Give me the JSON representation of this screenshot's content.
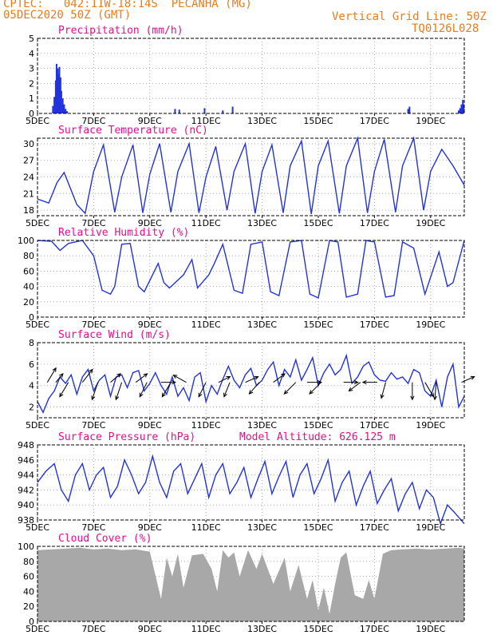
{
  "header": {
    "line1_left": "CPTEC:   042:11W-18:14S  PECANHA (MG)",
    "line2_left": "05DEC2020 50Z (GMT)",
    "line1_right": "Vertical Grid Line: 50Z",
    "line2_right": "TQ0126L028"
  },
  "x_tick_labels": [
    "5DEC",
    "7DEC",
    "9DEC",
    "11DEC",
    "13DEC",
    "15DEC",
    "17DEC",
    "19DEC"
  ],
  "x_tick_values": [
    0,
    2,
    4,
    6,
    8,
    10,
    12,
    14
  ],
  "x_range": [
    0,
    15.2
  ],
  "colors": {
    "line": "#2233dd",
    "bar": "#2233dd",
    "cloud": "#a8a8a8",
    "title": "#e0108a",
    "header": "#e87c1e"
  },
  "chart_data": [
    {
      "type": "bar",
      "title": "Precipitation (mm/h)",
      "ylim": [
        0,
        5
      ],
      "yticks": [
        0,
        1,
        2,
        3,
        4,
        5
      ],
      "bars": [
        {
          "x": 0.55,
          "y": 0.5
        },
        {
          "x": 0.6,
          "y": 1.1
        },
        {
          "x": 0.65,
          "y": 2.2
        },
        {
          "x": 0.68,
          "y": 3.3
        },
        {
          "x": 0.72,
          "y": 3.0
        },
        {
          "x": 0.75,
          "y": 2.6
        },
        {
          "x": 0.78,
          "y": 3.1
        },
        {
          "x": 0.82,
          "y": 2.4
        },
        {
          "x": 0.85,
          "y": 1.5
        },
        {
          "x": 0.9,
          "y": 1.0
        },
        {
          "x": 0.95,
          "y": 0.6
        },
        {
          "x": 1.0,
          "y": 0.3
        },
        {
          "x": 1.05,
          "y": 0.15
        },
        {
          "x": 4.9,
          "y": 0.3
        },
        {
          "x": 5.05,
          "y": 0.25
        },
        {
          "x": 5.95,
          "y": 0.35
        },
        {
          "x": 6.6,
          "y": 0.2
        },
        {
          "x": 6.95,
          "y": 0.45
        },
        {
          "x": 13.2,
          "y": 0.3
        },
        {
          "x": 13.25,
          "y": 0.45
        },
        {
          "x": 15.0,
          "y": 0.2
        },
        {
          "x": 15.05,
          "y": 0.35
        },
        {
          "x": 15.1,
          "y": 0.6
        },
        {
          "x": 15.15,
          "y": 0.9
        },
        {
          "x": 15.18,
          "y": 0.6
        }
      ]
    },
    {
      "type": "line",
      "title": "Surface Temperature (nC)",
      "ylim": [
        17,
        31
      ],
      "yticks": [
        18,
        21,
        24,
        27,
        30
      ],
      "series": [
        {
          "x": [
            0,
            0.4,
            0.7,
            0.95,
            1.4,
            1.7,
            2.0,
            2.35,
            2.75,
            3.0,
            3.4,
            3.75,
            4.0,
            4.35,
            4.75,
            5.0,
            5.4,
            5.75,
            6.0,
            6.35,
            6.75,
            7.0,
            7.4,
            7.75,
            8.0,
            8.35,
            8.75,
            9.0,
            9.4,
            9.75,
            10.0,
            10.35,
            10.75,
            11.0,
            11.4,
            11.75,
            12.0,
            12.35,
            12.75,
            13.0,
            13.4,
            13.75,
            14.0,
            14.4,
            14.8,
            15.2
          ],
          "y": [
            20,
            19.3,
            23,
            24.8,
            19,
            17.4,
            25,
            29.8,
            17.6,
            24,
            29.8,
            17.5,
            24.5,
            30,
            17.6,
            25,
            30,
            17.5,
            24,
            29.5,
            18,
            25,
            30,
            17.4,
            25,
            29.8,
            17.5,
            26,
            30.5,
            17.3,
            26,
            30.5,
            17.4,
            26,
            31,
            17.5,
            25,
            30.8,
            17.6,
            26,
            31,
            18,
            25,
            29,
            26,
            22.5
          ]
        }
      ]
    },
    {
      "type": "line",
      "title": "Relative Humidity (%)",
      "ylim": [
        0,
        100
      ],
      "yticks": [
        0,
        20,
        40,
        60,
        80,
        100
      ],
      "series": [
        {
          "x": [
            0,
            0.5,
            0.8,
            1.1,
            1.6,
            2.0,
            2.3,
            2.6,
            2.75,
            3.0,
            3.3,
            3.6,
            3.8,
            4.3,
            4.5,
            4.7,
            5.2,
            5.5,
            5.7,
            6.1,
            6.3,
            6.6,
            7.0,
            7.3,
            7.6,
            8.0,
            8.3,
            8.6,
            9.0,
            9.4,
            9.7,
            10.0,
            10.4,
            10.7,
            11.0,
            11.4,
            11.7,
            12.0,
            12.4,
            12.7,
            13.0,
            13.4,
            13.8,
            14.3,
            14.6,
            14.8,
            15.2
          ],
          "y": [
            100,
            99,
            87,
            96,
            100,
            80,
            35,
            30,
            40,
            95,
            96,
            40,
            33,
            70,
            45,
            38,
            55,
            75,
            38,
            55,
            70,
            95,
            35,
            31,
            95,
            98,
            33,
            28,
            98,
            100,
            30,
            25,
            100,
            98,
            26,
            30,
            100,
            98,
            26,
            28,
            98,
            90,
            30,
            85,
            40,
            45,
            100
          ]
        }
      ]
    },
    {
      "type": "line",
      "title": "Surface Wind (m/s)",
      "ylim": [
        1,
        8
      ],
      "yticks": [
        2,
        4,
        6,
        8
      ],
      "series": [
        {
          "x": [
            0,
            0.2,
            0.4,
            0.6,
            0.8,
            1.0,
            1.2,
            1.4,
            1.6,
            1.8,
            2.0,
            2.2,
            2.4,
            2.6,
            2.8,
            3.0,
            3.2,
            3.4,
            3.6,
            3.8,
            4.0,
            4.2,
            4.4,
            4.6,
            4.8,
            5.0,
            5.2,
            5.4,
            5.6,
            5.8,
            6.0,
            6.2,
            6.4,
            6.6,
            6.8,
            7.0,
            7.2,
            7.4,
            7.6,
            7.8,
            8.0,
            8.2,
            8.4,
            8.6,
            8.8,
            9.0,
            9.2,
            9.4,
            9.6,
            9.8,
            10.0,
            10.2,
            10.4,
            10.6,
            10.8,
            11.0,
            11.2,
            11.4,
            11.6,
            11.8,
            12.0,
            12.2,
            12.4,
            12.6,
            12.8,
            13.0,
            13.2,
            13.4,
            13.6,
            13.8,
            14.0,
            14.2,
            14.4,
            14.6,
            14.8,
            15.0,
            15.2
          ],
          "y": [
            2.5,
            1.5,
            2.8,
            3.5,
            4.8,
            4.2,
            5.0,
            3.2,
            4.8,
            5.5,
            3.5,
            4.5,
            5.0,
            3.0,
            4.8,
            5.0,
            3.8,
            5.2,
            5.4,
            3.5,
            4.2,
            5.2,
            4.0,
            3.2,
            4.8,
            3.0,
            3.8,
            2.6,
            4.8,
            5.2,
            2.5,
            4.0,
            3.2,
            4.6,
            5.8,
            4.5,
            3.8,
            5.0,
            5.6,
            4.0,
            4.5,
            5.5,
            6.2,
            4.0,
            5.5,
            4.8,
            6.4,
            4.5,
            5.5,
            6.6,
            4.0,
            5.2,
            6.0,
            5.0,
            5.5,
            6.8,
            4.2,
            4.8,
            5.8,
            6.2,
            5.0,
            4.5,
            4.4,
            5.2,
            4.6,
            4.8,
            4.2,
            5.5,
            5.2,
            3.5,
            3.0,
            4.5,
            2.0,
            4.8,
            6.0,
            2.0,
            3.0
          ]
        }
      ],
      "arrows": [
        {
          "x": 0.35,
          "u": 0.6,
          "v": 1.0
        },
        {
          "x": 0.65,
          "u": 0.5,
          "v": 0.6
        },
        {
          "x": 1.1,
          "u": -0.6,
          "v": -1.0
        },
        {
          "x": 1.6,
          "u": 0.7,
          "v": 0.9
        },
        {
          "x": 2.15,
          "u": -0.4,
          "v": -1.2
        },
        {
          "x": 2.6,
          "u": 0.7,
          "v": 0.6
        },
        {
          "x": 3.0,
          "u": -0.4,
          "v": -1.2
        },
        {
          "x": 3.5,
          "u": 0.8,
          "v": 0.6
        },
        {
          "x": 3.9,
          "u": -0.5,
          "v": -1.0
        },
        {
          "x": 4.4,
          "u": 1.0,
          "v": 0.0
        },
        {
          "x": 4.75,
          "u": -0.6,
          "v": -1.0
        },
        {
          "x": 5.3,
          "u": -0.9,
          "v": 0.5
        },
        {
          "x": 6.0,
          "u": -0.5,
          "v": -1.0
        },
        {
          "x": 6.45,
          "u": 0.8,
          "v": 0.4
        },
        {
          "x": 6.85,
          "u": -0.4,
          "v": -1.0
        },
        {
          "x": 7.4,
          "u": 0.9,
          "v": 0.4
        },
        {
          "x": 7.9,
          "u": -0.7,
          "v": -0.8
        },
        {
          "x": 8.4,
          "u": 0.8,
          "v": 0.6
        },
        {
          "x": 9.2,
          "u": -0.8,
          "v": -0.8
        },
        {
          "x": 9.6,
          "u": 1.0,
          "v": 0.0
        },
        {
          "x": 10.1,
          "u": -0.8,
          "v": -0.8
        },
        {
          "x": 10.9,
          "u": 1.0,
          "v": 0.0
        },
        {
          "x": 11.5,
          "u": -0.8,
          "v": -0.6
        },
        {
          "x": 12.1,
          "u": -1.0,
          "v": 0.0
        },
        {
          "x": 12.4,
          "u": -0.3,
          "v": -1.1
        },
        {
          "x": 13.35,
          "u": 0.0,
          "v": -1.2
        },
        {
          "x": 13.8,
          "u": 0.6,
          "v": -1.0
        },
        {
          "x": 14.2,
          "u": -0.1,
          "v": -1.2
        },
        {
          "x": 15.1,
          "u": 0.9,
          "v": 0.4
        }
      ]
    },
    {
      "type": "line",
      "title": "Surface Pressure (hPa)",
      "annotation": "Model Altitude: 626.125 m",
      "ylim": [
        938,
        948
      ],
      "yticks": [
        938,
        940,
        942,
        944,
        946,
        948
      ],
      "series": [
        {
          "x": [
            0,
            0.3,
            0.6,
            0.85,
            1.1,
            1.35,
            1.6,
            1.85,
            2.1,
            2.35,
            2.6,
            2.85,
            3.1,
            3.35,
            3.6,
            3.85,
            4.1,
            4.35,
            4.6,
            4.85,
            5.1,
            5.35,
            5.6,
            5.85,
            6.1,
            6.35,
            6.6,
            6.85,
            7.1,
            7.35,
            7.6,
            7.85,
            8.1,
            8.35,
            8.6,
            8.85,
            9.1,
            9.35,
            9.6,
            9.85,
            10.1,
            10.35,
            10.6,
            10.85,
            11.1,
            11.35,
            11.6,
            11.85,
            12.1,
            12.35,
            12.6,
            12.85,
            13.1,
            13.35,
            13.6,
            13.85,
            14.1,
            14.35,
            14.6,
            14.85,
            15.2
          ],
          "y": [
            943,
            944.5,
            945.5,
            942,
            940.5,
            944,
            945.5,
            942,
            944,
            945,
            941,
            942.5,
            946,
            944,
            941.5,
            943,
            946.5,
            943,
            941,
            944.5,
            945.5,
            941.5,
            943.5,
            945.5,
            941,
            944,
            945.5,
            941.5,
            943,
            945,
            941,
            943.5,
            945.8,
            941.5,
            943.8,
            945.8,
            941,
            944,
            945.5,
            941.5,
            943.5,
            946,
            940.5,
            943,
            944.5,
            940,
            942.5,
            944.5,
            940.2,
            942,
            943.5,
            939.2,
            941.5,
            943,
            939.5,
            942,
            941,
            937.5,
            940,
            939,
            937.5
          ]
        }
      ]
    },
    {
      "type": "area",
      "title": "Cloud Cover (%)",
      "ylim": [
        0,
        100
      ],
      "yticks": [
        0,
        20,
        40,
        60,
        80,
        100
      ],
      "series": [
        {
          "x": [
            0,
            0.5,
            1.0,
            1.5,
            2.0,
            2.5,
            3.0,
            3.5,
            4.0,
            4.4,
            4.6,
            4.8,
            5.0,
            5.2,
            5.5,
            5.9,
            6.2,
            6.4,
            6.6,
            6.8,
            7.0,
            7.2,
            7.5,
            7.8,
            8.0,
            8.4,
            8.8,
            9.0,
            9.3,
            9.6,
            9.8,
            10.0,
            10.2,
            10.4,
            10.6,
            10.8,
            11.0,
            11.3,
            11.6,
            11.8,
            12.0,
            12.3,
            12.6,
            13.0,
            13.5,
            14.0,
            14.5,
            15.0,
            15.2
          ],
          "y": [
            95,
            96,
            97,
            98,
            96,
            97,
            95,
            96,
            93,
            30,
            85,
            60,
            90,
            45,
            88,
            90,
            70,
            40,
            95,
            85,
            92,
            60,
            95,
            70,
            90,
            50,
            85,
            40,
            75,
            30,
            55,
            15,
            45,
            10,
            50,
            85,
            92,
            35,
            30,
            55,
            30,
            90,
            95,
            96,
            97,
            96,
            97,
            98,
            97
          ]
        }
      ]
    }
  ]
}
